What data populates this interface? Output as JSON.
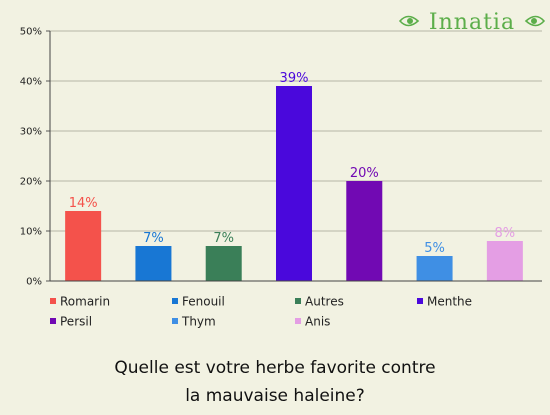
{
  "logo": {
    "text": "Innatia",
    "color": "#5cae4a"
  },
  "title_lines": [
    "Quelle est votre herbe favorite contre",
    "la mauvaise haleine?"
  ],
  "chart_data": {
    "type": "bar",
    "title": "Quelle est votre herbe favorite contre la mauvaise haleine?",
    "categories": [
      "Romarin",
      "Fenouil",
      "Autres",
      "Menthe",
      "Persil",
      "Thym",
      "Anis"
    ],
    "values": [
      14,
      7,
      7,
      39,
      20,
      5,
      8
    ],
    "value_labels": [
      "14%",
      "7%",
      "7%",
      "39%",
      "20%",
      "5%",
      "8%"
    ],
    "colors": [
      "#f4524b",
      "#1877d4",
      "#3a7f58",
      "#4a08dc",
      "#7109b3",
      "#3f8fe4",
      "#e49ee4"
    ],
    "ylim": [
      0,
      50
    ],
    "yticks": [
      0,
      10,
      20,
      30,
      40,
      50
    ],
    "ytick_labels": [
      "0%",
      "10%",
      "20%",
      "30%",
      "40%",
      "50%"
    ],
    "grid": true,
    "legend_position": "bottom"
  }
}
